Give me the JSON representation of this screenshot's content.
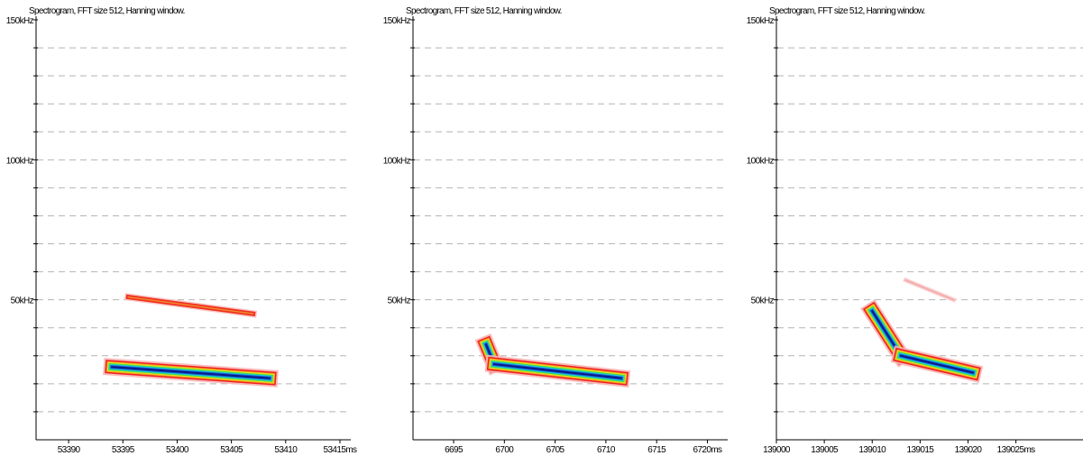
{
  "chart_data": [
    {
      "type": "heatmap",
      "title": "Spectrogram, FFT size 512, Hanning window.",
      "x_unit": "ms",
      "y_unit": "kHz",
      "xlim": [
        53387,
        53416
      ],
      "ylim": [
        0,
        150
      ],
      "x_ticks": [
        53390,
        53395,
        53400,
        53405,
        53410,
        53415
      ],
      "y_ticks": [
        50,
        100,
        150
      ],
      "y_tick_labels": [
        "50kHz",
        "100kHz",
        "150kHz"
      ],
      "gridlines_khz": [
        10,
        20,
        30,
        40,
        50,
        60,
        70,
        80,
        90,
        100,
        110,
        120,
        130,
        140
      ],
      "grid": true,
      "traces": [
        {
          "start_ms": 53394.0,
          "end_ms": 53408.5,
          "start_khz": 26,
          "end_khz": 22,
          "intensity": "high"
        },
        {
          "start_ms": 53395.5,
          "end_ms": 53407.0,
          "start_khz": 51,
          "end_khz": 45,
          "intensity": "low"
        }
      ]
    },
    {
      "type": "heatmap",
      "title": "Spectrogram, FFT size 512, Hanning window.",
      "x_unit": "ms",
      "y_unit": "kHz",
      "xlim": [
        6691,
        6722
      ],
      "ylim": [
        0,
        150
      ],
      "x_ticks": [
        6695,
        6700,
        6705,
        6710,
        6715,
        6720
      ],
      "y_ticks": [
        50,
        100,
        150
      ],
      "y_tick_labels": [
        "50kHz",
        "100kHz",
        "150kHz"
      ],
      "gridlines_khz": [
        10,
        20,
        30,
        40,
        50,
        60,
        70,
        80,
        90,
        100,
        110,
        120,
        130,
        140
      ],
      "grid": true,
      "traces": [
        {
          "start_ms": 6698.2,
          "end_ms": 6699.0,
          "start_khz": 34,
          "end_khz": 27,
          "intensity": "high"
        },
        {
          "start_ms": 6699.0,
          "end_ms": 6711.5,
          "start_khz": 27,
          "end_khz": 22,
          "intensity": "high"
        }
      ]
    },
    {
      "type": "heatmap",
      "title": "Spectrogram, FFT size 512, Hanning window.",
      "x_unit": "ms",
      "y_unit": "kHz",
      "xlim": [
        139000,
        139032
      ],
      "ylim": [
        0,
        150
      ],
      "x_ticks": [
        139000,
        139005,
        139010,
        139015,
        139020,
        139025
      ],
      "y_ticks": [
        50,
        100,
        150
      ],
      "y_tick_labels": [
        "50kHz",
        "100kHz",
        "150kHz"
      ],
      "gridlines_khz": [
        10,
        20,
        30,
        40,
        50,
        60,
        70,
        80,
        90,
        100,
        110,
        120,
        130,
        140
      ],
      "grid": true,
      "traces": [
        {
          "start_ms": 139010.0,
          "end_ms": 139013.0,
          "start_khz": 46,
          "end_khz": 30,
          "intensity": "high"
        },
        {
          "start_ms": 139013.0,
          "end_ms": 139020.5,
          "start_khz": 30,
          "end_khz": 24,
          "intensity": "high"
        },
        {
          "start_ms": 139013.5,
          "end_ms": 139018.5,
          "start_khz": 57,
          "end_khz": 50,
          "intensity": "faint"
        }
      ]
    }
  ]
}
